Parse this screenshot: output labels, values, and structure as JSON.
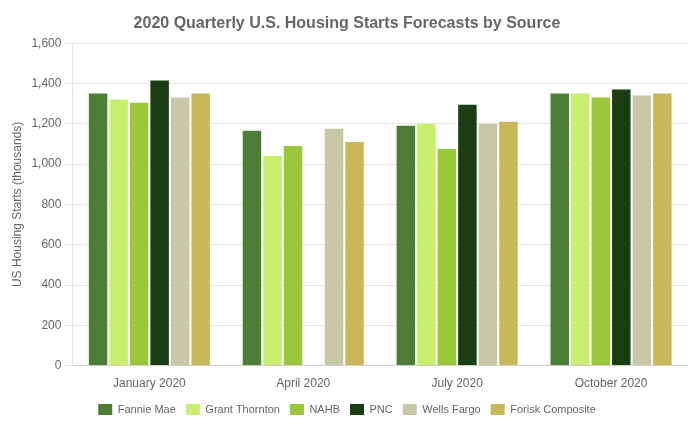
{
  "chart_data": {
    "type": "bar",
    "title": "2020 Quarterly U.S. Housing Starts Forecasts by Source",
    "y_label": "US Housing Starts (thousands)",
    "categories": [
      "January 2020",
      "April 2020",
      "July 2020",
      "October 2020"
    ],
    "series": [
      {
        "name": "Fannie Mae",
        "color": "#4e7d35",
        "values": [
          1350,
          1165,
          1190,
          1350
        ]
      },
      {
        "name": "Grant Thornton",
        "color": "#c8f06e",
        "values": [
          1320,
          1040,
          1200,
          1350
        ]
      },
      {
        "name": "NAHB",
        "color": "#9ac83a",
        "values": [
          1305,
          1090,
          1075,
          1330
        ]
      },
      {
        "name": "PNC",
        "color": "#1b3d12",
        "values": [
          1415,
          null,
          1295,
          1370
        ]
      },
      {
        "name": "Wells Fargo",
        "color": "#c8c8a9",
        "values": [
          1330,
          1175,
          1200,
          1340
        ]
      },
      {
        "name": "Forisk Composite",
        "color": "#c8b85a",
        "values": [
          1350,
          1110,
          1210,
          1350
        ]
      }
    ],
    "ylim": [
      0,
      1600
    ],
    "yticks": [
      0,
      200,
      400,
      600,
      800,
      {
        "value": 1000,
        "label": "1,000"
      },
      {
        "value": 1200,
        "label": "1,200"
      },
      {
        "value": 1400,
        "label": "1,400"
      },
      {
        "value": 1600,
        "label": "1,600"
      }
    ],
    "grid": true,
    "legend": "bottom"
  }
}
